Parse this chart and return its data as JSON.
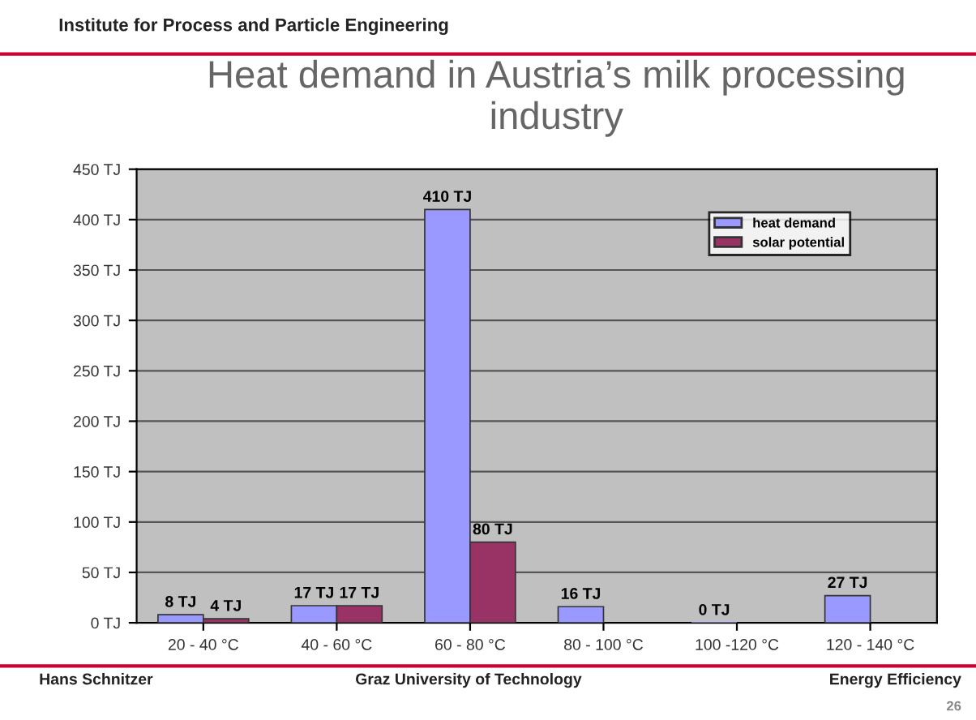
{
  "chart_data": {
    "type": "bar",
    "title": "Heat demand in Austria’s milk processing industry",
    "categories": [
      "20 - 40 °C",
      "40 - 60 °C",
      "60 - 80 °C",
      "80 - 100 °C",
      "100 -120 °C",
      "120 - 140 °C"
    ],
    "series": [
      {
        "name": "heat demand",
        "color": "#9999ff",
        "values": [
          8,
          17,
          410,
          16,
          0,
          27
        ],
        "value_labels": [
          "8 TJ",
          "17 TJ",
          "410 TJ",
          "16 TJ",
          "0 TJ",
          "27 TJ"
        ]
      },
      {
        "name": "solar potential",
        "color": "#993366",
        "values": [
          4,
          17,
          80,
          null,
          null,
          null
        ],
        "value_labels": [
          "4 TJ",
          "17 TJ",
          "80 TJ",
          null,
          null,
          null
        ]
      }
    ],
    "ylim": [
      0,
      450
    ],
    "yticks": [
      {
        "value": 0,
        "label": "0 TJ"
      },
      {
        "value": 50,
        "label": "50 TJ"
      },
      {
        "value": 100,
        "label": "100 TJ"
      },
      {
        "value": 150,
        "label": "150 TJ"
      },
      {
        "value": 200,
        "label": "200 TJ"
      },
      {
        "value": 250,
        "label": "250 TJ"
      },
      {
        "value": 300,
        "label": "300 TJ"
      },
      {
        "value": 350,
        "label": "350 TJ"
      },
      {
        "value": 400,
        "label": "400 TJ"
      },
      {
        "value": 450,
        "label": "450 TJ"
      }
    ],
    "grid": "y",
    "legend": "top right",
    "annotations": [
      "Institute for Process and Particle Engineering",
      "Hans Schnitzer",
      "Graz University of Technology",
      "Energy Efficiency",
      "26"
    ]
  }
}
